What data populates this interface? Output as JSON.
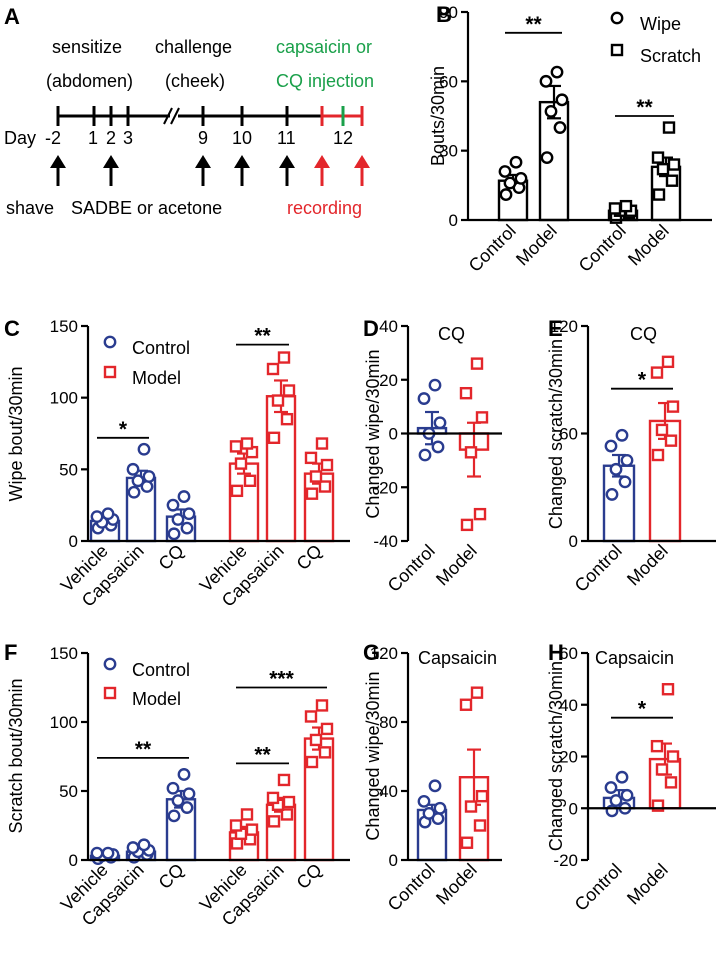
{
  "colors": {
    "control": "#2a3c8f",
    "model": "#e3262b",
    "black": "#000000",
    "green": "#1aa04a",
    "red": "#e3262b"
  },
  "timeline": {
    "panel_label": "A",
    "day_label": "Day",
    "days": [
      "-2",
      "1",
      "2",
      "3",
      "9",
      "10",
      "11",
      "12"
    ],
    "phase_sensitize": [
      "sensitize",
      "(abdomen)"
    ],
    "phase_challenge": [
      "challenge",
      "(cheek)"
    ],
    "phase_injection": [
      "capsaicin or",
      "CQ injection"
    ],
    "bottom_shave": "shave",
    "bottom_treatment": "SADBE or acetone",
    "bottom_recording": "recording"
  },
  "chart_data": [
    {
      "id": "B",
      "panel_label": "B",
      "type": "bar",
      "ylabel": "Bouts/30min",
      "ylim": [
        0,
        90
      ],
      "yticks": [
        0,
        30,
        60,
        90
      ],
      "categories": [
        "Control",
        "Model",
        "Control",
        "Model"
      ],
      "legend": [
        {
          "name": "Wipe",
          "marker": "circle"
        },
        {
          "name": "Scratch",
          "marker": "square"
        }
      ],
      "bars": [
        {
          "group": "Wipe",
          "category": "Control",
          "value": 17,
          "sem": 2.5,
          "points": [
            11,
            14,
            16,
            18,
            21,
            25
          ],
          "marker": "circle",
          "color": "black"
        },
        {
          "group": "Wipe",
          "category": "Model",
          "value": 51,
          "sem": 7,
          "points": [
            27,
            40,
            47,
            52,
            60,
            64
          ],
          "marker": "circle",
          "color": "black"
        },
        {
          "group": "Scratch",
          "category": "Control",
          "value": 4,
          "sem": 1,
          "points": [
            1,
            3,
            4,
            4,
            5,
            6
          ],
          "marker": "square",
          "color": "black"
        },
        {
          "group": "Scratch",
          "category": "Model",
          "value": 23,
          "sem": 4,
          "points": [
            11,
            17,
            22,
            24,
            27,
            40
          ],
          "marker": "square",
          "color": "black"
        }
      ],
      "significance": [
        {
          "label": "**",
          "between": [
            0,
            1
          ],
          "at": 81
        },
        {
          "label": "**",
          "between": [
            2,
            3
          ],
          "at": 45
        }
      ]
    },
    {
      "id": "C",
      "panel_label": "C",
      "type": "bar",
      "ylabel": "Wipe bout/30min",
      "ylim": [
        0,
        150
      ],
      "yticks": [
        0,
        50,
        100,
        150
      ],
      "categories": [
        "Vehicle",
        "Capsaicin",
        "CQ",
        "Vehicle",
        "Capsaicin",
        "CQ"
      ],
      "legend": [
        {
          "name": "Control",
          "marker": "circle",
          "color": "control"
        },
        {
          "name": "Model",
          "marker": "square",
          "color": "model"
        }
      ],
      "bars": [
        {
          "group": "Control",
          "category": "Vehicle",
          "value": 14,
          "sem": 2,
          "points": [
            9,
            11,
            13,
            15,
            17,
            19
          ],
          "marker": "circle",
          "color": "control"
        },
        {
          "group": "Control",
          "category": "Capsaicin",
          "value": 44,
          "sem": 5,
          "points": [
            34,
            38,
            42,
            45,
            50,
            64
          ],
          "marker": "circle",
          "color": "control"
        },
        {
          "group": "Control",
          "category": "CQ",
          "value": 17,
          "sem": 5,
          "points": [
            5,
            9,
            15,
            19,
            25,
            31
          ],
          "marker": "circle",
          "color": "control"
        },
        {
          "group": "Model",
          "category": "Vehicle",
          "value": 54,
          "sem": 7,
          "points": [
            35,
            42,
            54,
            62,
            66,
            68
          ],
          "marker": "square",
          "color": "model"
        },
        {
          "group": "Model",
          "category": "Capsaicin",
          "value": 101,
          "sem": 11,
          "points": [
            72,
            85,
            98,
            105,
            120,
            128
          ],
          "marker": "square",
          "color": "model"
        },
        {
          "group": "Model",
          "category": "CQ",
          "value": 47,
          "sem": 7,
          "points": [
            33,
            38,
            45,
            53,
            58,
            68
          ],
          "marker": "square",
          "color": "model"
        }
      ],
      "significance": [
        {
          "label": "*",
          "between": [
            0,
            1
          ],
          "at": 72
        },
        {
          "label": "**",
          "between": [
            3,
            4
          ],
          "at": 137
        }
      ]
    },
    {
      "id": "D",
      "panel_label": "D",
      "type": "bar",
      "title": "CQ",
      "ylabel": "Changed wipe/30min",
      "ylim": [
        -40,
        40
      ],
      "yticks": [
        -40,
        -20,
        0,
        20,
        40
      ],
      "categories": [
        "Control",
        "Model"
      ],
      "bars": [
        {
          "category": "Control",
          "value": 2,
          "sem": 6,
          "points": [
            -8,
            -5,
            0,
            4,
            13,
            18
          ],
          "marker": "circle",
          "color": "control"
        },
        {
          "category": "Model",
          "value": -6,
          "sem": 10,
          "points": [
            -34,
            -30,
            -7,
            6,
            15,
            26
          ],
          "marker": "square",
          "color": "model"
        }
      ],
      "significance": []
    },
    {
      "id": "E",
      "panel_label": "E",
      "type": "bar",
      "title": "CQ",
      "ylabel": "Changed scratch/30min",
      "ylim": [
        0,
        120
      ],
      "yticks": [
        0,
        60,
        120
      ],
      "categories": [
        "Control",
        "Model"
      ],
      "bars": [
        {
          "category": "Control",
          "value": 42,
          "sem": 6,
          "points": [
            26,
            33,
            40,
            45,
            53,
            59
          ],
          "marker": "circle",
          "color": "control"
        },
        {
          "category": "Model",
          "value": 67,
          "sem": 10,
          "points": [
            48,
            56,
            62,
            75,
            94,
            100
          ],
          "marker": "square",
          "color": "model"
        }
      ],
      "significance": [
        {
          "label": "*",
          "between": [
            0,
            1
          ],
          "at": 85
        }
      ]
    },
    {
      "id": "F",
      "panel_label": "F",
      "type": "bar",
      "ylabel": "Scratch bout/30min",
      "ylim": [
        0,
        150
      ],
      "yticks": [
        0,
        50,
        100,
        150
      ],
      "categories": [
        "Vehicle",
        "Capsaicin",
        "CQ",
        "Vehicle",
        "Capsaicin",
        "CQ"
      ],
      "legend": [
        {
          "name": "Control",
          "marker": "circle",
          "color": "control"
        },
        {
          "name": "Model",
          "marker": "square",
          "color": "model"
        }
      ],
      "bars": [
        {
          "group": "Control",
          "category": "Vehicle",
          "value": 3,
          "sem": 1,
          "points": [
            1,
            2,
            3,
            4,
            5,
            5
          ],
          "marker": "circle",
          "color": "control"
        },
        {
          "group": "Control",
          "category": "Capsaicin",
          "value": 6,
          "sem": 2,
          "points": [
            2,
            4,
            6,
            7,
            9,
            11
          ],
          "marker": "circle",
          "color": "control"
        },
        {
          "group": "Control",
          "category": "CQ",
          "value": 44,
          "sem": 6,
          "points": [
            32,
            38,
            43,
            48,
            52,
            62
          ],
          "marker": "circle",
          "color": "control"
        },
        {
          "group": "Model",
          "category": "Vehicle",
          "value": 20,
          "sem": 4,
          "points": [
            12,
            15,
            19,
            22,
            25,
            33
          ],
          "marker": "square",
          "color": "model"
        },
        {
          "group": "Model",
          "category": "Capsaicin",
          "value": 40,
          "sem": 5,
          "points": [
            28,
            33,
            40,
            42,
            45,
            58
          ],
          "marker": "square",
          "color": "model"
        },
        {
          "group": "Model",
          "category": "CQ",
          "value": 88,
          "sem": 8,
          "points": [
            71,
            78,
            87,
            95,
            104,
            112
          ],
          "marker": "square",
          "color": "model"
        }
      ],
      "significance": [
        {
          "label": "**",
          "between": [
            0,
            2
          ],
          "at": 74
        },
        {
          "label": "**",
          "between": [
            3,
            4
          ],
          "at": 70
        },
        {
          "label": "***",
          "between": [
            3,
            5
          ],
          "at": 125
        }
      ]
    },
    {
      "id": "G",
      "panel_label": "G",
      "type": "bar",
      "title": "Capsaicin",
      "ylabel": "Changed wipe/30min",
      "ylim": [
        0,
        120
      ],
      "yticks": [
        0,
        40,
        80,
        120
      ],
      "categories": [
        "Control",
        "Model"
      ],
      "bars": [
        {
          "category": "Control",
          "value": 29,
          "sem": 3,
          "points": [
            22,
            24,
            27,
            30,
            34,
            43
          ],
          "marker": "circle",
          "color": "control"
        },
        {
          "category": "Model",
          "value": 48,
          "sem": 16,
          "points": [
            10,
            20,
            31,
            37,
            90,
            97
          ],
          "marker": "square",
          "color": "model"
        }
      ],
      "significance": []
    },
    {
      "id": "H",
      "panel_label": "H",
      "type": "bar",
      "title": "Capsaicin",
      "ylabel": "Changed scratch/30min",
      "ylim": [
        -20,
        60
      ],
      "yticks": [
        -20,
        0,
        20,
        40,
        60
      ],
      "categories": [
        "Control",
        "Model"
      ],
      "bars": [
        {
          "category": "Control",
          "value": 4,
          "sem": 3,
          "points": [
            -1,
            0,
            3,
            5,
            8,
            12
          ],
          "marker": "circle",
          "color": "control"
        },
        {
          "category": "Model",
          "value": 19,
          "sem": 6,
          "points": [
            1,
            10,
            15,
            20,
            24,
            46
          ],
          "marker": "square",
          "color": "model"
        }
      ],
      "significance": [
        {
          "label": "*",
          "between": [
            0,
            1
          ],
          "at": 35
        }
      ]
    }
  ]
}
